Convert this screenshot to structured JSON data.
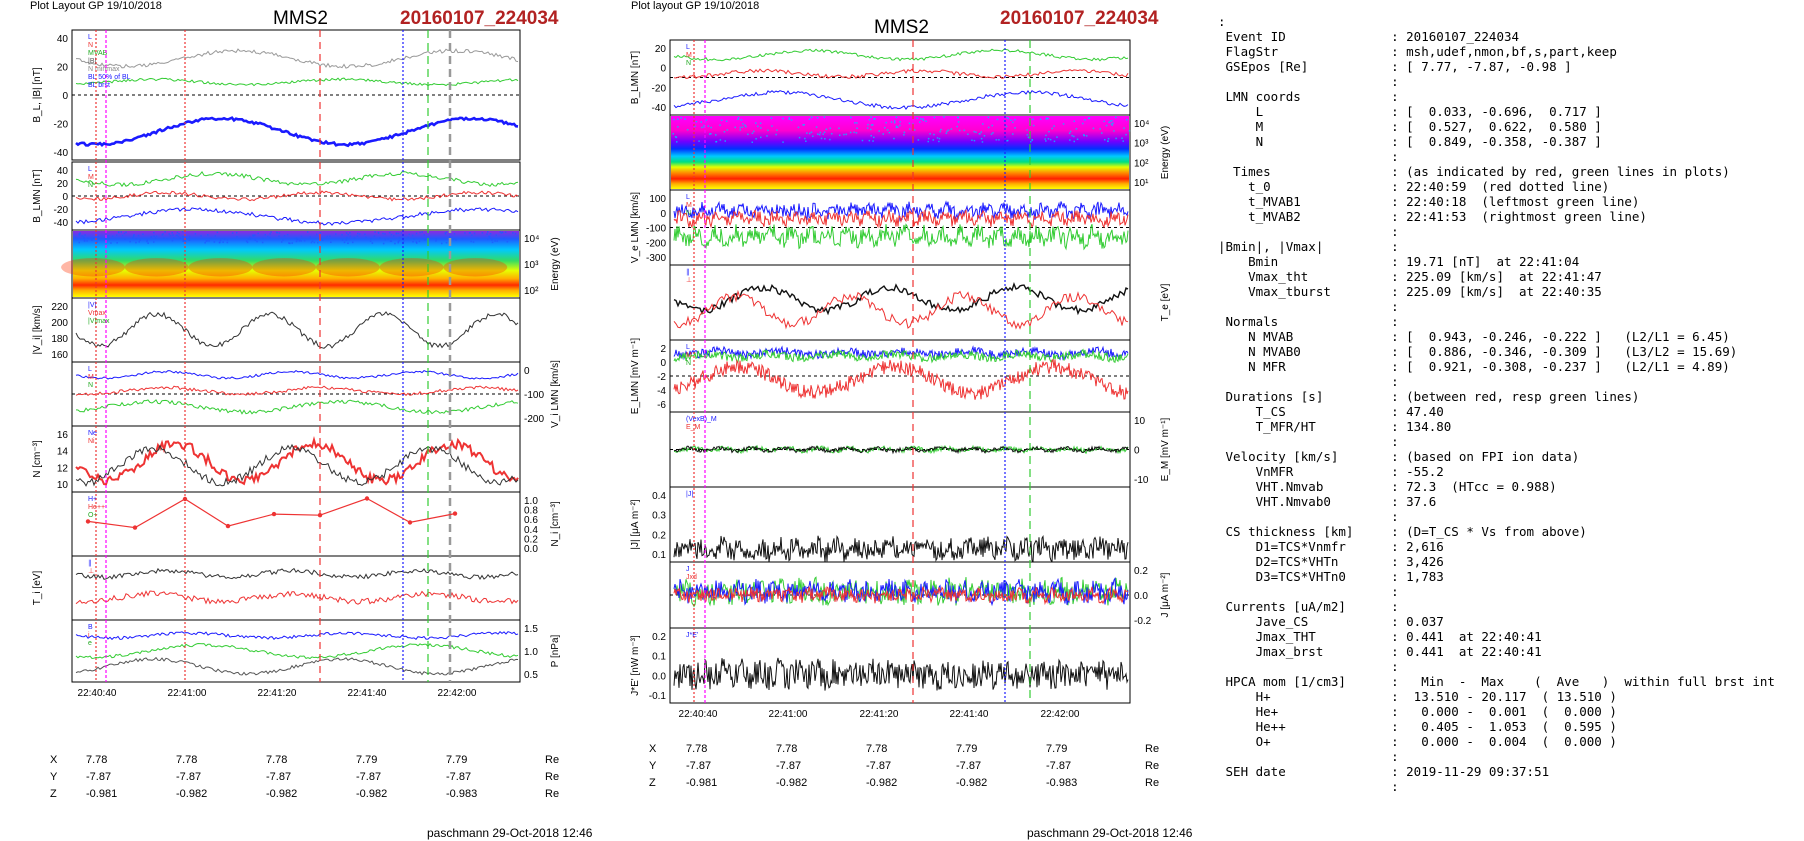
{
  "left": {
    "plot_layout": "Plot Layout GP 19/10/2018",
    "title": "MMS2",
    "event": "20160107_224034",
    "footer": "paschmann 29-Oct-2018 12:46",
    "times": [
      "22:40:40",
      "22:41:00",
      "22:41:20",
      "22:41:40",
      "22:42:00"
    ],
    "coords": {
      "labels": [
        "X",
        "Y",
        "Z"
      ],
      "unit": "Re",
      "rows": [
        [
          "7.78",
          "7.78",
          "7.78",
          "7.79",
          "7.79"
        ],
        [
          "-7.87",
          "-7.87",
          "-7.87",
          "-7.87",
          "-7.87"
        ],
        [
          "-0.981",
          "-0.982",
          "-0.982",
          "-0.982",
          "-0.983"
        ]
      ]
    },
    "panels": [
      {
        "ylabel": "B_L, |B| [nT]",
        "ticks": [
          "40",
          "20",
          "0",
          "-20",
          "-40"
        ],
        "side": "left",
        "legend": [
          "L",
          "N",
          "MVAB",
          "|B|",
          "N minmax",
          "BL 50% of BL",
          "BL brst"
        ]
      },
      {
        "ylabel": "B_LMN [nT]",
        "ticks": [
          "40",
          "20",
          "0",
          "-20",
          "-40"
        ],
        "side": "left",
        "legend": [
          "L",
          "M",
          "N"
        ]
      },
      {
        "ylabel": "Energy (eV)",
        "ticks": [
          "10⁴",
          "10³",
          "10²"
        ],
        "side": "right"
      },
      {
        "ylabel": "|V_i| [km/s]",
        "ticks": [
          "220",
          "200",
          "180",
          "160"
        ],
        "side": "left",
        "legend": [
          "|V|",
          "Vmax",
          "|V|max"
        ]
      },
      {
        "ylabel": "V_i LMN [km/s]",
        "ticks": [
          "0",
          "-100",
          "-200"
        ],
        "side": "right",
        "legend": [
          "L",
          "M",
          "N"
        ]
      },
      {
        "ylabel": "N [cm⁻³]",
        "ticks": [
          "16",
          "14",
          "12",
          "10"
        ],
        "side": "left",
        "legend": [
          "Ne",
          "Ni"
        ]
      },
      {
        "ylabel": "N_i [cm⁻³]",
        "ticks": [
          "1.0",
          "0.8",
          "0.6",
          "0.4",
          "0.2",
          "0.0"
        ],
        "side": "right",
        "legend": [
          "H+",
          "He++",
          "O+"
        ]
      },
      {
        "ylabel": "T_i [eV]",
        "ticks": [],
        "side": "left",
        "legend": [
          "∥",
          "⊥"
        ]
      },
      {
        "ylabel": "P [nPa]",
        "ticks": [
          "1.5",
          "1.0",
          "0.5"
        ],
        "side": "right",
        "legend": [
          "B",
          "i",
          "e"
        ]
      }
    ]
  },
  "middle": {
    "plot_layout": "Plot layout GP 19/10/2018",
    "title": "MMS2",
    "event": "20160107_224034",
    "footer": "paschmann 29-Oct-2018 12:46",
    "times": [
      "22:40:40",
      "22:41:00",
      "22:41:20",
      "22:41:40",
      "22:42:00"
    ],
    "coords": {
      "labels": [
        "X",
        "Y",
        "Z"
      ],
      "unit": "Re",
      "rows": [
        [
          "7.78",
          "7.78",
          "7.78",
          "7.79",
          "7.79"
        ],
        [
          "-7.87",
          "-7.87",
          "-7.87",
          "-7.87",
          "-7.87"
        ],
        [
          "-0.981",
          "-0.982",
          "-0.982",
          "-0.982",
          "-0.983"
        ]
      ]
    },
    "panels": [
      {
        "ylabel": "B_LMN [nT]",
        "ticks": [
          "20",
          "0",
          "-20",
          "-40"
        ],
        "side": "left",
        "legend": [
          "L",
          "M",
          "N"
        ]
      },
      {
        "ylabel": "Energy (eV)",
        "ticks": [
          "10⁴",
          "10³",
          "10²",
          "10¹"
        ],
        "side": "right"
      },
      {
        "ylabel": "V_e LMN [km/s]",
        "ticks": [
          "100",
          "0",
          "-100",
          "-200",
          "-300"
        ],
        "side": "left",
        "legend": [
          "L",
          "M",
          "N"
        ]
      },
      {
        "ylabel": "T_e [eV]",
        "ticks": [],
        "side": "right",
        "legend": [
          "∥",
          "⊥"
        ]
      },
      {
        "ylabel": "E_LMN [mV m⁻¹]",
        "ticks": [
          "2",
          "0",
          "-2",
          "-4",
          "-6"
        ],
        "side": "left",
        "legend": [
          "L",
          "M",
          "N"
        ]
      },
      {
        "ylabel": "E_M [mV m⁻¹]",
        "ticks": [
          "10",
          "0",
          "-10"
        ],
        "side": "right",
        "legend": [
          "(VexB)_M",
          "E_M"
        ]
      },
      {
        "ylabel": "|J| [μA m⁻²]",
        "ticks": [
          "0.4",
          "0.3",
          "0.2",
          "0.1"
        ],
        "side": "left",
        "legend": [
          "|J|"
        ]
      },
      {
        "ylabel": "J [μA m⁻²]",
        "ticks": [
          "0.2",
          "0.0",
          "-0.2"
        ],
        "side": "right",
        "legend": [
          "J",
          "Jxd"
        ]
      },
      {
        "ylabel": "J*E' [nW m⁻³]",
        "ticks": [
          "0.2",
          "0.1",
          "0.0",
          "-0.1"
        ],
        "side": "left",
        "legend": [
          "J*E'"
        ]
      }
    ]
  },
  "info_text": ":\n Event ID              : 20160107_224034\n FlagStr               : msh,udef,nmon,bf,s,part,keep\n GSEpos [Re]           : [ 7.77, -7.87, -0.98 ]\n                       :\n LMN coords            :\n     L                 : [  0.033, -0.696,  0.717 ]\n     M                 : [  0.527,  0.622,  0.580 ]\n     N                 : [  0.849, -0.358, -0.387 ]\n                       :\n  Times                : (as indicated by red, green lines in plots)\n    t_0                : 22:40:59  (red dotted line)\n    t_MVAB1            : 22:40:18  (leftmost green line)\n    t_MVAB2            : 22:41:53  (rightmost green line)\n                       :\n|Bmin|, |Vmax|         :\n    Bmin               : 19.71 [nT]  at 22:41:04\n    Vmax_tht           : 225.09 [km/s]  at 22:41:47\n    Vmax_tburst        : 225.09 [km/s]  at 22:40:35\n                       :\n Normals               :\n    N MVAB             : [  0.943, -0.246, -0.222 ]   (L2/L1 = 6.45)\n    N MVAB0            : [  0.886, -0.346, -0.309 ]   (L3/L2 = 15.69)\n    N MFR              : [  0.921, -0.308, -0.237 ]   (L2/L1 = 4.89)\n                       :\n Durations [s]         : (between red, resp green lines)\n     T_CS              : 47.40\n     T_MFR/HT          : 134.80\n                       :\n Velocity [km/s]       : (based on FPI ion data)\n     VnMFR             : -55.2\n     VHT.Nmvab         : 72.3  (HTcc = 0.988)\n     VHT.Nmvab0        : 37.6\n                       :\n CS thickness [km]     : (D=T_CS * Vs from above)\n     D1=TCS*Vnmfr      : 2,616\n     D2=TCS*VHTn       : 3,426\n     D3=TCS*VHTn0      : 1,783\n                       :\n Currents [uA/m2]      :\n     Jave_CS           : 0.037\n     Jmax_THT          : 0.441  at 22:40:41\n     Jmax_brst         : 0.441  at 22:40:41\n                       :\n HPCA mom [1/cm3]      :   Min  -  Max    (  Ave   )  within full brst int\n     H+                :  13.510 - 20.117  ( 13.510 )\n     He+               :   0.000 -  0.001  (  0.000 )\n     He++              :   0.405 -  1.053  (  0.595 )\n     O+                :   0.000 -  0.004  (  0.000 )\n                       :\n SEH date              : 2019-11-29 09:37:51\n                       :",
  "chart_data": [
    {
      "type": "line",
      "title": "MMS2",
      "subtitle": "20160107_224034",
      "x": [
        "22:40:40",
        "22:41:00",
        "22:41:20",
        "22:41:40",
        "22:42:00"
      ],
      "xlabel": "",
      "panels": [
        {
          "ylabel": "B_L, |B| [nT]",
          "ylim": [
            -45,
            45
          ]
        },
        {
          "ylabel": "B_LMN [nT]",
          "ylim": [
            -45,
            45
          ]
        },
        {
          "ylabel": "Energy (eV)",
          "type": "heatmap"
        },
        {
          "ylabel": "|V_i| [km/s]",
          "ylim": [
            150,
            230
          ]
        },
        {
          "ylabel": "V_i LMN [km/s]",
          "ylim": [
            -260,
            30
          ]
        },
        {
          "ylabel": "N [cm⁻³]",
          "ylim": [
            9,
            16.5
          ]
        },
        {
          "ylabel": "N_i [cm⁻³]",
          "ylim": [
            0,
            1.0
          ],
          "series": [
            {
              "name": "He++",
              "x": [
                "22:40:43",
                "22:40:48",
                "22:40:57",
                "22:41:06",
                "22:41:14",
                "22:41:23",
                "22:41:32",
                "22:41:41",
                "22:41:49"
              ],
              "values": [
                0.55,
                0.43,
                0.98,
                0.46,
                0.69,
                0.67,
                0.99,
                0.53,
                0.7
              ]
            }
          ]
        },
        {
          "ylabel": "T_i [eV]"
        },
        {
          "ylabel": "P [nPa]",
          "ylim": [
            0.3,
            1.7
          ]
        }
      ]
    },
    {
      "type": "line",
      "title": "MMS2",
      "subtitle": "20160107_224034",
      "x": [
        "22:40:40",
        "22:41:00",
        "22:41:20",
        "22:41:40",
        "22:42:00"
      ],
      "xlabel": "",
      "panels": [
        {
          "ylabel": "B_LMN [nT]",
          "ylim": [
            -42,
            35
          ]
        },
        {
          "ylabel": "Energy (eV)",
          "type": "heatmap"
        },
        {
          "ylabel": "V_e LMN [km/s]",
          "ylim": [
            -340,
            160
          ]
        },
        {
          "ylabel": "T_e [eV]"
        },
        {
          "ylabel": "E_LMN [mV m⁻¹]",
          "ylim": [
            -7,
            3
          ]
        },
        {
          "ylabel": "E_M [mV m⁻¹]",
          "ylim": [
            -15,
            15
          ]
        },
        {
          "ylabel": "|J| [μA m⁻²]",
          "ylim": [
            0,
            0.45
          ]
        },
        {
          "ylabel": "J [μA m⁻²]",
          "ylim": [
            -0.35,
            0.3
          ]
        },
        {
          "ylabel": "J*E' [nW m⁻³]",
          "ylim": [
            -0.15,
            0.25
          ]
        }
      ]
    }
  ]
}
